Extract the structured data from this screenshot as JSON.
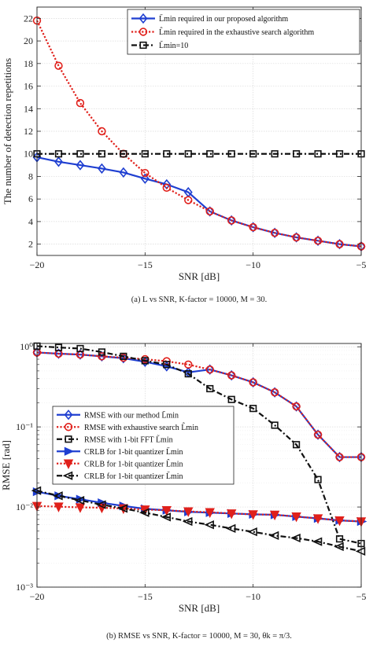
{
  "chart_data": [
    {
      "type": "line",
      "xlabel": "SNR [dB]",
      "ylabel": "The number of detection repetitions",
      "xlim": [
        -20,
        -5
      ],
      "ylim": [
        1,
        23
      ],
      "yscale": "linear",
      "grid": true,
      "legend_position": "top-right",
      "xticks": [
        -20,
        -15,
        -10,
        -5
      ],
      "xtick_labels": [
        "−20",
        "−15",
        "−10",
        "−5"
      ],
      "yticks": [
        2,
        4,
        6,
        8,
        10,
        12,
        14,
        16,
        18,
        20,
        22
      ],
      "ytick_labels": [
        "2",
        "4",
        "6",
        "8",
        "10",
        "12",
        "14",
        "16",
        "18",
        "20",
        "22"
      ],
      "caption": "(a)  L vs SNR, K-factor = 10000, M = 30.",
      "series": [
        {
          "name": "L̄min required in our proposed algorithm",
          "color": "#1f3fd1",
          "marker": "diamond",
          "linestyle": "solid",
          "x": [
            -20,
            -19,
            -18,
            -17,
            -16,
            -15,
            -14,
            -13,
            -12,
            -11,
            -10,
            -9,
            -8,
            -7,
            -6,
            -5
          ],
          "y": [
            9.7,
            9.3,
            9.0,
            8.7,
            8.35,
            7.8,
            7.3,
            6.6,
            4.9,
            4.1,
            3.5,
            3.0,
            2.6,
            2.3,
            2.0,
            1.8
          ]
        },
        {
          "name": "L̂min required in the exhaustive search algorithm",
          "color": "#e0201b",
          "marker": "circle",
          "linestyle": "dotted",
          "x": [
            -20,
            -19,
            -18,
            -17,
            -16,
            -15,
            -14,
            -13,
            -12,
            -11,
            -10,
            -9,
            -8,
            -7,
            -6,
            -5
          ],
          "y": [
            21.8,
            17.8,
            14.5,
            12.0,
            10.0,
            8.3,
            7.0,
            5.9,
            4.9,
            4.1,
            3.5,
            3.0,
            2.6,
            2.3,
            2.0,
            1.8
          ]
        },
        {
          "name": "L̃min=10",
          "color": "#111111",
          "marker": "square",
          "linestyle": "dashdot",
          "x": [
            -20,
            -19,
            -18,
            -17,
            -16,
            -15,
            -14,
            -13,
            -12,
            -11,
            -10,
            -9,
            -8,
            -7,
            -6,
            -5
          ],
          "y": [
            10,
            10,
            10,
            10,
            10,
            10,
            10,
            10,
            10,
            10,
            10,
            10,
            10,
            10,
            10,
            10
          ]
        }
      ]
    },
    {
      "type": "line",
      "xlabel": "SNR [dB]",
      "ylabel": "RMSE [rad]",
      "xlim": [
        -20,
        -5
      ],
      "ylim": [
        0.001,
        1.1
      ],
      "yscale": "log",
      "grid": true,
      "legend_position": "middle-left",
      "xticks": [
        -20,
        -15,
        -10,
        -5
      ],
      "xtick_labels": [
        "−20",
        "−15",
        "−10",
        "−5"
      ],
      "yticks": [
        0.001,
        0.01,
        0.1,
        1
      ],
      "ytick_labels": [
        "10⁻³",
        "10⁻²",
        "10⁻¹",
        "10⁰"
      ],
      "caption": "(b)  RMSE vs SNR, K-factor = 10000, M = 30, θk = π/3.",
      "series": [
        {
          "name": "RMSE with our method L̄min",
          "color": "#1f3fd1",
          "marker": "diamond",
          "linestyle": "solid",
          "x": [
            -20,
            -19,
            -18,
            -17,
            -16,
            -15,
            -14,
            -13,
            -12,
            -11,
            -10,
            -9,
            -8,
            -7,
            -6,
            -5
          ],
          "y": [
            0.85,
            0.82,
            0.8,
            0.76,
            0.72,
            0.65,
            0.57,
            0.48,
            0.52,
            0.44,
            0.36,
            0.27,
            0.18,
            0.08,
            0.042,
            0.042
          ]
        },
        {
          "name": "RMSE with exhaustive search L̂min",
          "color": "#e0201b",
          "marker": "circle",
          "linestyle": "dotted",
          "x": [
            -20,
            -19,
            -18,
            -17,
            -16,
            -15,
            -14,
            -13,
            -12,
            -11,
            -10,
            -9,
            -8,
            -7,
            -6,
            -5
          ],
          "y": [
            0.85,
            0.82,
            0.8,
            0.76,
            0.73,
            0.7,
            0.66,
            0.6,
            0.52,
            0.44,
            0.36,
            0.27,
            0.18,
            0.08,
            0.042,
            0.042
          ]
        },
        {
          "name": "RMSE with 1-bit FFT L̃min",
          "color": "#111111",
          "marker": "square",
          "linestyle": "dashdot",
          "x": [
            -20,
            -19,
            -18,
            -17,
            -16,
            -15,
            -14,
            -13,
            -12,
            -11,
            -10,
            -9,
            -8,
            -7,
            -6,
            -5
          ],
          "y": [
            1.02,
            0.98,
            0.95,
            0.86,
            0.76,
            0.67,
            0.6,
            0.46,
            0.3,
            0.22,
            0.17,
            0.105,
            0.06,
            0.022,
            0.004,
            0.0035
          ]
        },
        {
          "name": "CRLB for 1-bit quantizer L̄min",
          "color": "#1f3fd1",
          "marker": "triangle-right",
          "linestyle": "solid",
          "x": [
            -20,
            -19,
            -18,
            -17,
            -16,
            -15,
            -14,
            -13,
            -12,
            -11,
            -10,
            -9,
            -8,
            -7,
            -6,
            -5
          ],
          "y": [
            0.0155,
            0.0138,
            0.0125,
            0.0113,
            0.0103,
            0.0095,
            0.0091,
            0.0087,
            0.0085,
            0.0083,
            0.0081,
            0.008,
            0.0076,
            0.0072,
            0.0068,
            0.0066
          ]
        },
        {
          "name": "CRLB for 1-bit quantizer L̂min",
          "color": "#e0201b",
          "marker": "triangle-down",
          "linestyle": "dotted",
          "x": [
            -20,
            -19,
            -18,
            -17,
            -16,
            -15,
            -14,
            -13,
            -12,
            -11,
            -10,
            -9,
            -8,
            -7,
            -6,
            -5
          ],
          "y": [
            0.0103,
            0.0101,
            0.0099,
            0.0098,
            0.0096,
            0.0093,
            0.0091,
            0.0088,
            0.0086,
            0.0083,
            0.0081,
            0.008,
            0.0076,
            0.0072,
            0.0068,
            0.0066
          ]
        },
        {
          "name": "CRLB for 1-bit quantizer L̃min",
          "color": "#111111",
          "marker": "triangle-left",
          "linestyle": "dashdot",
          "x": [
            -20,
            -19,
            -18,
            -17,
            -16,
            -15,
            -14,
            -13,
            -12,
            -11,
            -10,
            -9,
            -8,
            -7,
            -6,
            -5
          ],
          "y": [
            0.016,
            0.0138,
            0.0121,
            0.0107,
            0.0096,
            0.0085,
            0.0075,
            0.0066,
            0.006,
            0.0054,
            0.0049,
            0.0044,
            0.0041,
            0.0037,
            0.0032,
            0.0028
          ]
        }
      ]
    }
  ]
}
